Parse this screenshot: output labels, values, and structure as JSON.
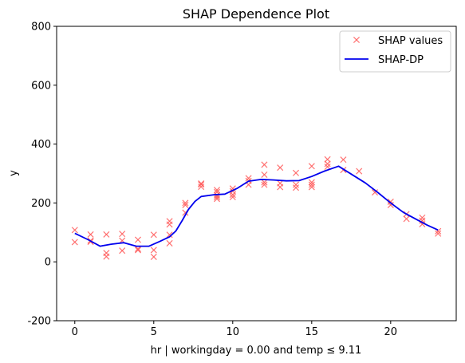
{
  "chart_data": {
    "type": "scatter",
    "title": "SHAP Dependence Plot",
    "xlabel": "hr | workingday = 0.00 and temp ≤ 9.11",
    "ylabel": "y",
    "xlim": [
      -1.15,
      24.15
    ],
    "ylim": [
      -200,
      800
    ],
    "xticks": [
      0,
      5,
      10,
      15,
      20
    ],
    "yticks": [
      -200,
      0,
      200,
      400,
      600,
      800
    ],
    "grid": false,
    "legend_position": "top-right",
    "series": [
      {
        "name": "SHAP values",
        "kind": "markers",
        "marker": "x",
        "color": "#ff5a5a",
        "points": [
          [
            0,
            108
          ],
          [
            0,
            67
          ],
          [
            1,
            93
          ],
          [
            1,
            72
          ],
          [
            1,
            68
          ],
          [
            2,
            93
          ],
          [
            2,
            30
          ],
          [
            2,
            18
          ],
          [
            3,
            95
          ],
          [
            3,
            72
          ],
          [
            3,
            38
          ],
          [
            4,
            75
          ],
          [
            4,
            44
          ],
          [
            4,
            40
          ],
          [
            5,
            92
          ],
          [
            5,
            40
          ],
          [
            5,
            17
          ],
          [
            6,
            138
          ],
          [
            6,
            127
          ],
          [
            6,
            92
          ],
          [
            6,
            63
          ],
          [
            7,
            200
          ],
          [
            7,
            193
          ],
          [
            7,
            167
          ],
          [
            8,
            266
          ],
          [
            8,
            263
          ],
          [
            8,
            255
          ],
          [
            9,
            244
          ],
          [
            9,
            237
          ],
          [
            9,
            226
          ],
          [
            9,
            220
          ],
          [
            9,
            214
          ],
          [
            10,
            249
          ],
          [
            10,
            240
          ],
          [
            10,
            228
          ],
          [
            10,
            220
          ],
          [
            11,
            284
          ],
          [
            11,
            275
          ],
          [
            11,
            262
          ],
          [
            12,
            330
          ],
          [
            12,
            296
          ],
          [
            12,
            270
          ],
          [
            12,
            262
          ],
          [
            13,
            320
          ],
          [
            13,
            267
          ],
          [
            13,
            254
          ],
          [
            14,
            302
          ],
          [
            14,
            262
          ],
          [
            14,
            252
          ],
          [
            15,
            325
          ],
          [
            15,
            270
          ],
          [
            15,
            262
          ],
          [
            15,
            254
          ],
          [
            16,
            348
          ],
          [
            16,
            333
          ],
          [
            16,
            323
          ],
          [
            17,
            347
          ],
          [
            17,
            312
          ],
          [
            18,
            308
          ],
          [
            19,
            236
          ],
          [
            20,
            204
          ],
          [
            20,
            193
          ],
          [
            21,
            162
          ],
          [
            21,
            146
          ],
          [
            22,
            150
          ],
          [
            22,
            140
          ],
          [
            22,
            128
          ],
          [
            23,
            104
          ],
          [
            23,
            96
          ]
        ]
      },
      {
        "name": "SHAP-DP",
        "kind": "line",
        "color": "#0000ee",
        "x": [
          0,
          0.85,
          1.6,
          2.3,
          3.1,
          3.9,
          4.7,
          5.4,
          6.0,
          6.4,
          6.8,
          7.2,
          7.6,
          8.0,
          8.8,
          9.5,
          10.3,
          11.0,
          11.8,
          12.6,
          13.4,
          14.2,
          15.0,
          15.8,
          16.7,
          17.5,
          18.4,
          19.2,
          20.0,
          20.8,
          21.6,
          22.3,
          23.0
        ],
        "y": [
          97,
          75,
          53,
          60,
          65,
          53,
          53,
          70,
          85,
          105,
          140,
          178,
          205,
          222,
          228,
          230,
          250,
          274,
          280,
          278,
          275,
          276,
          290,
          308,
          325,
          298,
          268,
          235,
          200,
          168,
          145,
          125,
          108
        ]
      }
    ]
  }
}
